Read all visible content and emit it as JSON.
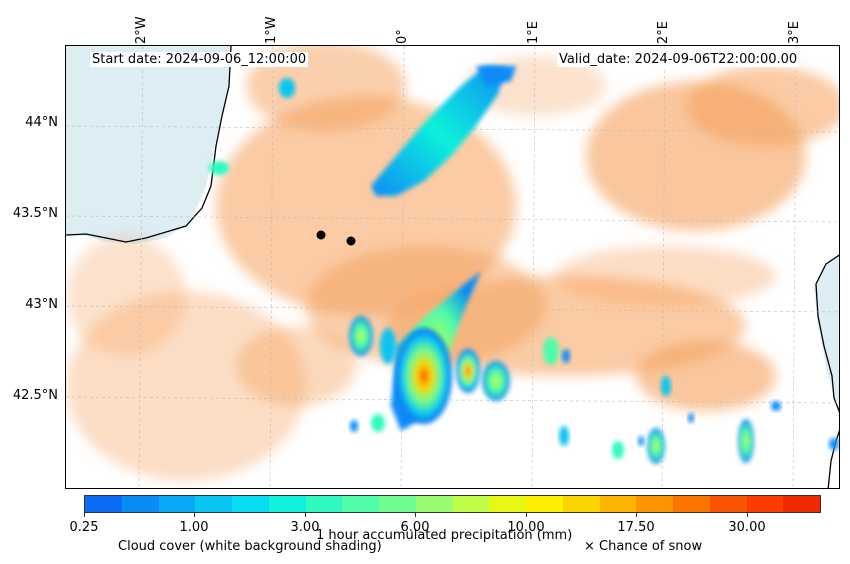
{
  "header": {
    "start_date": "Start date: 2024-09-06_12:00:00",
    "valid_date": "Valid_date: 2024-09-06T22:00:00.00"
  },
  "axes": {
    "lon_labels": [
      "2°W",
      "1°W",
      "0°",
      "1°E",
      "2°E",
      "3°E"
    ],
    "lat_labels": [
      "44°N",
      "43.5°N",
      "43°N",
      "42.5°N"
    ]
  },
  "colorbar": {
    "title": "1 hour accumulated precipitation (mm)",
    "tick_labels": [
      "0.25",
      "1.00",
      "3.00",
      "6.00",
      "10.00",
      "17.50",
      "30.00"
    ],
    "colors": [
      "#0a6cf5",
      "#0a8cf5",
      "#08aaf5",
      "#08c4f0",
      "#08dcf0",
      "#10f0dc",
      "#30f8c0",
      "#50fca8",
      "#70fc90",
      "#98fc70",
      "#c0fc48",
      "#e8f814",
      "#fcf000",
      "#fcd400",
      "#fcb400",
      "#fc9400",
      "#fc7400",
      "#fc5400",
      "#fc3c00",
      "#f02a00"
    ],
    "cloud_shade": "#f5a05a",
    "sea_shade": "#d0e8f0"
  },
  "legend": {
    "cloud_cover": "Cloud cover (white background shading)",
    "snow": "× Chance of snow"
  },
  "markers": {
    "color": "#000000"
  }
}
